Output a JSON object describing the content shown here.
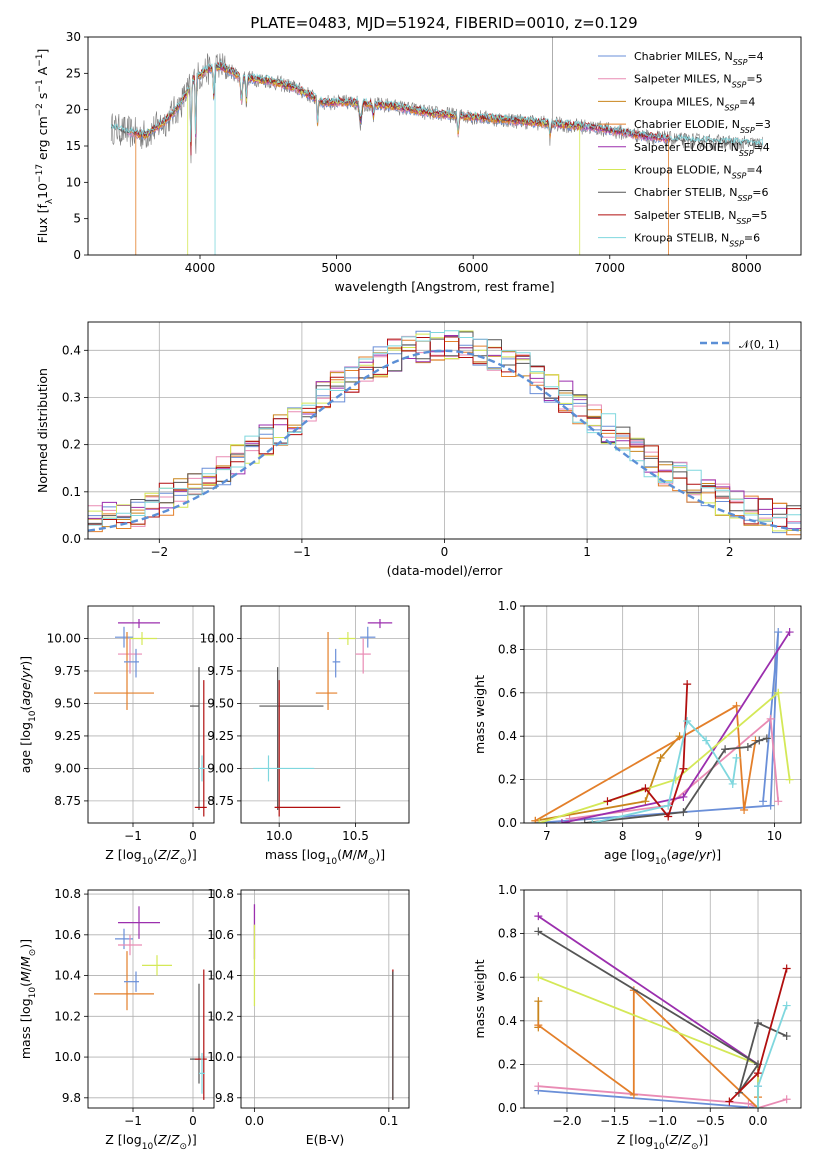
{
  "figure": {
    "title": "PLATE=0483, MJD=51924, FIBERID=0010, z=0.129"
  },
  "colors": {
    "models": [
      "#6a8fd8",
      "#e98bb4",
      "#c9851c",
      "#e37f2a",
      "#9b2fae",
      "#d4e857",
      "#555555",
      "#b10f0f",
      "#7fd7de"
    ]
  },
  "chart_data": [
    {
      "type": "line",
      "title": "PLATE=0483, MJD=51924, FIBERID=0010, z=0.129",
      "xlabel": "wavelength [Angstrom, rest frame]",
      "ylabel": "Flux [f_λ 10^-17 erg cm^-2 s^-1 A^-1]",
      "xlim": [
        3180,
        8400
      ],
      "ylim": [
        0,
        30
      ],
      "xticks": [
        4000,
        5000,
        6000,
        7000,
        8000
      ],
      "yticks": [
        0,
        5,
        10,
        15,
        20,
        25,
        30
      ],
      "grid": false,
      "legend": "upper right",
      "legend_entries": [
        "Chabrier MILES, N_SSP=4",
        "Salpeter MILES, N_SSP=5",
        "Kroupa MILES, N_SSP=4",
        "Chabrier ELODIE, N_SSP=3",
        "Salpeter ELODIE, N_SSP=4",
        "Kroupa ELODIE, N_SSP=4",
        "Chabrier STELIB, N_SSP=6",
        "Salpeter STELIB, N_SSP=5",
        "Kroupa STELIB, N_SSP=6"
      ],
      "continuum": {
        "x": [
          3350,
          3450,
          3600,
          3750,
          3850,
          3950,
          4050,
          4150,
          4300,
          4500,
          4700,
          4900,
          5100,
          5400,
          5700,
          6000,
          6300,
          6600,
          6900,
          7200,
          7500,
          7800,
          8100
        ],
        "y": [
          17.5,
          17.0,
          16.5,
          18.5,
          20.5,
          24.0,
          25.5,
          26.0,
          24.5,
          24.0,
          23.0,
          21.0,
          21.0,
          20.5,
          19.5,
          19.0,
          18.5,
          18.0,
          17.5,
          16.5,
          15.8,
          15.5,
          15.2
        ]
      }
    },
    {
      "type": "step",
      "xlabel": "(data-model)/error",
      "ylabel": "Normed distribution",
      "xlim": [
        -2.5,
        2.5
      ],
      "ylim": [
        0,
        0.46
      ],
      "xticks": [
        -2,
        -1,
        0,
        1,
        2
      ],
      "yticks": [
        0.0,
        0.1,
        0.2,
        0.3,
        0.4
      ],
      "grid": true,
      "legend": "upper right",
      "legend_entries": [
        "𝒩(0, 1)"
      ],
      "reference": {
        "name": "𝒩(0, 1)",
        "mu": 0,
        "sigma": 1
      }
    },
    {
      "type": "scatter",
      "xlabel": "Z [log10(Z/Z⊙)]",
      "ylabel": "age  [log10(age/yr)]",
      "xlim": [
        -1.75,
        0.35
      ],
      "ylim": [
        8.58,
        10.25
      ],
      "xticks": [
        -1,
        0
      ],
      "yticks": [
        8.75,
        9.0,
        9.25,
        9.5,
        9.75,
        10.0
      ],
      "grid": true,
      "points": [
        {
          "x": -1.15,
          "y": 10.01,
          "xerr": [
            0.15,
            0.15
          ],
          "yerr": [
            0.08,
            0.08
          ]
        },
        {
          "x": -1.05,
          "y": 9.88,
          "xerr": [
            0.2,
            0.2
          ],
          "yerr": [
            0.15,
            0.12
          ]
        },
        {
          "x": -1.25,
          "y": 9.99,
          "xerr": [
            0.0,
            0.0
          ],
          "yerr": [
            0.0,
            0.0
          ]
        },
        {
          "x": -1.1,
          "y": 9.58,
          "xerr": [
            0.55,
            0.45
          ],
          "yerr": [
            0.13,
            0.47
          ]
        },
        {
          "x": -0.9,
          "y": 10.12,
          "xerr": [
            0.35,
            0.35
          ],
          "yerr": [
            0.04,
            0.03
          ]
        },
        {
          "x": -0.85,
          "y": 10.0,
          "xerr": [
            0.2,
            0.25
          ],
          "yerr": [
            0.05,
            0.05
          ]
        },
        {
          "x": 0.1,
          "y": 9.48,
          "xerr": [
            0.15,
            0.0
          ],
          "yerr": [
            0.8,
            0.3
          ]
        },
        {
          "x": 0.18,
          "y": 8.7,
          "xerr": [
            0.15,
            0.05
          ],
          "yerr": [
            0.07,
            0.98
          ]
        },
        {
          "x": 0.15,
          "y": 9.0,
          "xerr": [
            0.05,
            0.05
          ],
          "yerr": [
            0.1,
            0.1
          ]
        },
        {
          "x": -0.95,
          "y": 9.82,
          "xerr": [
            0.2,
            0.05
          ],
          "yerr": [
            0.12,
            0.1
          ]
        }
      ]
    },
    {
      "type": "scatter",
      "xlabel": "mass [log10(M/M⊙)]",
      "ylabel": "",
      "xlim": [
        9.75,
        10.85
      ],
      "ylim": [
        8.58,
        10.25
      ],
      "xticks": [
        10.0,
        10.5
      ],
      "yticks": [
        8.75,
        9.0,
        9.25,
        9.5,
        9.75,
        10.0
      ],
      "grid": true,
      "points": [
        {
          "x": 10.58,
          "y": 10.01,
          "xerr": [
            0.05,
            0.05
          ],
          "yerr": [
            0.08,
            0.08
          ]
        },
        {
          "x": 10.55,
          "y": 9.88,
          "xerr": [
            0.05,
            0.05
          ],
          "yerr": [
            0.15,
            0.12
          ]
        },
        {
          "x": 10.45,
          "y": 9.99,
          "xerr": [
            0.0,
            0.0
          ],
          "yerr": [
            0.0,
            0.0
          ]
        },
        {
          "x": 10.32,
          "y": 9.58,
          "xerr": [
            0.08,
            0.06
          ],
          "yerr": [
            0.13,
            0.47
          ]
        },
        {
          "x": 10.66,
          "y": 10.12,
          "xerr": [
            0.08,
            0.08
          ],
          "yerr": [
            0.04,
            0.03
          ]
        },
        {
          "x": 10.45,
          "y": 10.0,
          "xerr": [
            0.06,
            0.05
          ],
          "yerr": [
            0.05,
            0.05
          ]
        },
        {
          "x": 9.99,
          "y": 9.48,
          "xerr": [
            0.12,
            0.3
          ],
          "yerr": [
            0.8,
            0.3
          ]
        },
        {
          "x": 10.0,
          "y": 8.7,
          "xerr": [
            0.03,
            0.4
          ],
          "yerr": [
            0.07,
            0.98
          ]
        },
        {
          "x": 9.93,
          "y": 9.0,
          "xerr": [
            0.1,
            0.3
          ],
          "yerr": [
            0.1,
            0.1
          ]
        },
        {
          "x": 10.37,
          "y": 9.82,
          "xerr": [
            0.02,
            0.03
          ],
          "yerr": [
            0.12,
            0.1
          ]
        }
      ]
    },
    {
      "type": "line",
      "xlabel": "age  [log10(age/yr)]",
      "ylabel": "mass weight",
      "xlim": [
        6.7,
        10.35
      ],
      "ylim": [
        0,
        1
      ],
      "xticks": [
        7,
        8,
        9,
        10
      ],
      "yticks": [
        0.0,
        0.2,
        0.4,
        0.6,
        0.8,
        1.0
      ],
      "grid": true,
      "series": [
        {
          "x": [
            6.85,
            9.95,
            10.05,
            9.85
          ],
          "y": [
            0.0,
            0.08,
            0.88,
            0.1
          ]
        },
        {
          "x": [
            7.3,
            8.6,
            9.95,
            10.05
          ],
          "y": [
            0.02,
            0.08,
            0.48,
            0.1
          ]
        },
        {
          "x": [
            6.85,
            8.3,
            8.5,
            8.75
          ],
          "y": [
            0.01,
            0.1,
            0.3,
            0.4
          ]
        },
        {
          "x": [
            6.85,
            9.5,
            9.6,
            9.75
          ],
          "y": [
            0.01,
            0.54,
            0.06,
            0.38
          ]
        },
        {
          "x": [
            7.2,
            8.8,
            10.2
          ],
          "y": [
            0.0,
            0.12,
            0.88
          ]
        },
        {
          "x": [
            6.9,
            8.7,
            10.05,
            10.2
          ],
          "y": [
            0.0,
            0.2,
            0.6,
            0.2
          ]
        },
        {
          "x": [
            7.5,
            8.8,
            9.35,
            9.65,
            9.8,
            9.9
          ],
          "y": [
            0.0,
            0.05,
            0.34,
            0.35,
            0.38,
            0.39
          ]
        },
        {
          "x": [
            7.8,
            8.3,
            8.6,
            8.8,
            8.85
          ],
          "y": [
            0.1,
            0.16,
            0.03,
            0.25,
            0.64
          ]
        },
        {
          "x": [
            7.6,
            8.6,
            8.85,
            9.1,
            9.45,
            9.5
          ],
          "y": [
            0.0,
            0.08,
            0.47,
            0.38,
            0.18,
            0.3
          ]
        }
      ]
    },
    {
      "type": "scatter",
      "xlabel": "Z [log10(Z/Z⊙)]",
      "ylabel": "mass [log10(M/M⊙)]",
      "xlim": [
        -1.75,
        0.35
      ],
      "ylim": [
        9.75,
        10.82
      ],
      "xticks": [
        -1,
        0
      ],
      "yticks": [
        9.8,
        10.0,
        10.2,
        10.4,
        10.6,
        10.8
      ],
      "grid": true,
      "points": [
        {
          "x": -1.15,
          "y": 10.58,
          "xerr": [
            0.15,
            0.15
          ],
          "yerr": [
            0.05,
            0.05
          ]
        },
        {
          "x": -1.05,
          "y": 10.55,
          "xerr": [
            0.2,
            0.2
          ],
          "yerr": [
            0.05,
            0.05
          ]
        },
        {
          "x": -1.25,
          "y": 10.45,
          "xerr": [
            0.0,
            0.0
          ],
          "yerr": [
            0.0,
            0.0
          ]
        },
        {
          "x": -1.1,
          "y": 10.31,
          "xerr": [
            0.55,
            0.45
          ],
          "yerr": [
            0.08,
            0.21
          ]
        },
        {
          "x": -0.9,
          "y": 10.66,
          "xerr": [
            0.35,
            0.35
          ],
          "yerr": [
            0.08,
            0.08
          ]
        },
        {
          "x": -0.6,
          "y": 10.45,
          "xerr": [
            0.25,
            0.25
          ],
          "yerr": [
            0.05,
            0.05
          ]
        },
        {
          "x": 0.1,
          "y": 9.99,
          "xerr": [
            0.15,
            0.0
          ],
          "yerr": [
            0.12,
            0.37
          ]
        },
        {
          "x": 0.18,
          "y": 9.99,
          "xerr": [
            0.15,
            0.05
          ],
          "yerr": [
            0.2,
            0.44
          ]
        },
        {
          "x": 0.15,
          "y": 9.92,
          "xerr": [
            0.05,
            0.05
          ],
          "yerr": [
            0.1,
            0.1
          ]
        },
        {
          "x": -0.95,
          "y": 10.37,
          "xerr": [
            0.2,
            0.05
          ],
          "yerr": [
            0.05,
            0.05
          ]
        }
      ]
    },
    {
      "type": "scatter",
      "xlabel": "E(B-V)",
      "ylabel": "",
      "xlim": [
        -0.01,
        0.115
      ],
      "ylim": [
        9.75,
        10.82
      ],
      "xticks": [
        0.0,
        0.1
      ],
      "yticks": [
        9.8,
        10.0,
        10.2,
        10.4,
        10.6,
        10.8
      ],
      "grid": true,
      "points": [
        {
          "x": 0.0,
          "y": 10.58,
          "yerr": [
            0.1,
            0.17
          ]
        },
        {
          "x": 0.0,
          "y": 10.45,
          "yerr": [
            0.2,
            0.2
          ]
        },
        {
          "x": 0.103,
          "y": 9.99,
          "yerr": [
            0.2,
            0.44
          ]
        },
        {
          "x": 0.103,
          "y": 10.32,
          "yerr": [
            0.53,
            0.1
          ]
        }
      ]
    },
    {
      "type": "line",
      "xlabel": "Z [log10(Z/Z⊙)]",
      "ylabel": "mass weight",
      "xlim": [
        -2.45,
        0.45
      ],
      "ylim": [
        0,
        1
      ],
      "xticks": [
        -2.0,
        -1.5,
        -1.0,
        -0.5,
        0.0
      ],
      "yticks": [
        0.0,
        0.2,
        0.4,
        0.6,
        0.8,
        1.0
      ],
      "grid": true,
      "series": [
        {
          "x": [
            -2.3,
            0.0,
            0.0
          ],
          "y": [
            0.08,
            0.0,
            0.1
          ]
        },
        {
          "x": [
            -2.3,
            -0.1,
            0.0,
            0.3
          ],
          "y": [
            0.1,
            0.02,
            0.0,
            0.04
          ]
        },
        {
          "x": [
            -2.3,
            -2.3
          ],
          "y": [
            0.37,
            0.49
          ]
        },
        {
          "x": [
            -2.3,
            -1.3,
            -1.3,
            0.0,
            0.0
          ],
          "y": [
            0.38,
            0.06,
            0.54,
            0.0,
            0.05
          ]
        },
        {
          "x": [
            -2.3,
            0.0,
            0.0
          ],
          "y": [
            0.88,
            0.2,
            0.0
          ]
        },
        {
          "x": [
            -2.3,
            0.0,
            0.0,
            0.0
          ],
          "y": [
            0.6,
            0.2,
            0.0,
            0.0
          ]
        },
        {
          "x": [
            -2.3,
            0.0,
            -0.2,
            0.0,
            0.3
          ],
          "y": [
            0.81,
            0.2,
            0.07,
            0.39,
            0.33
          ]
        },
        {
          "x": [
            -0.3,
            0.0,
            0.3
          ],
          "y": [
            0.03,
            0.16,
            0.64
          ]
        },
        {
          "x": [
            0.0,
            0.0,
            0.3
          ],
          "y": [
            0.0,
            0.1,
            0.47
          ]
        }
      ]
    }
  ]
}
